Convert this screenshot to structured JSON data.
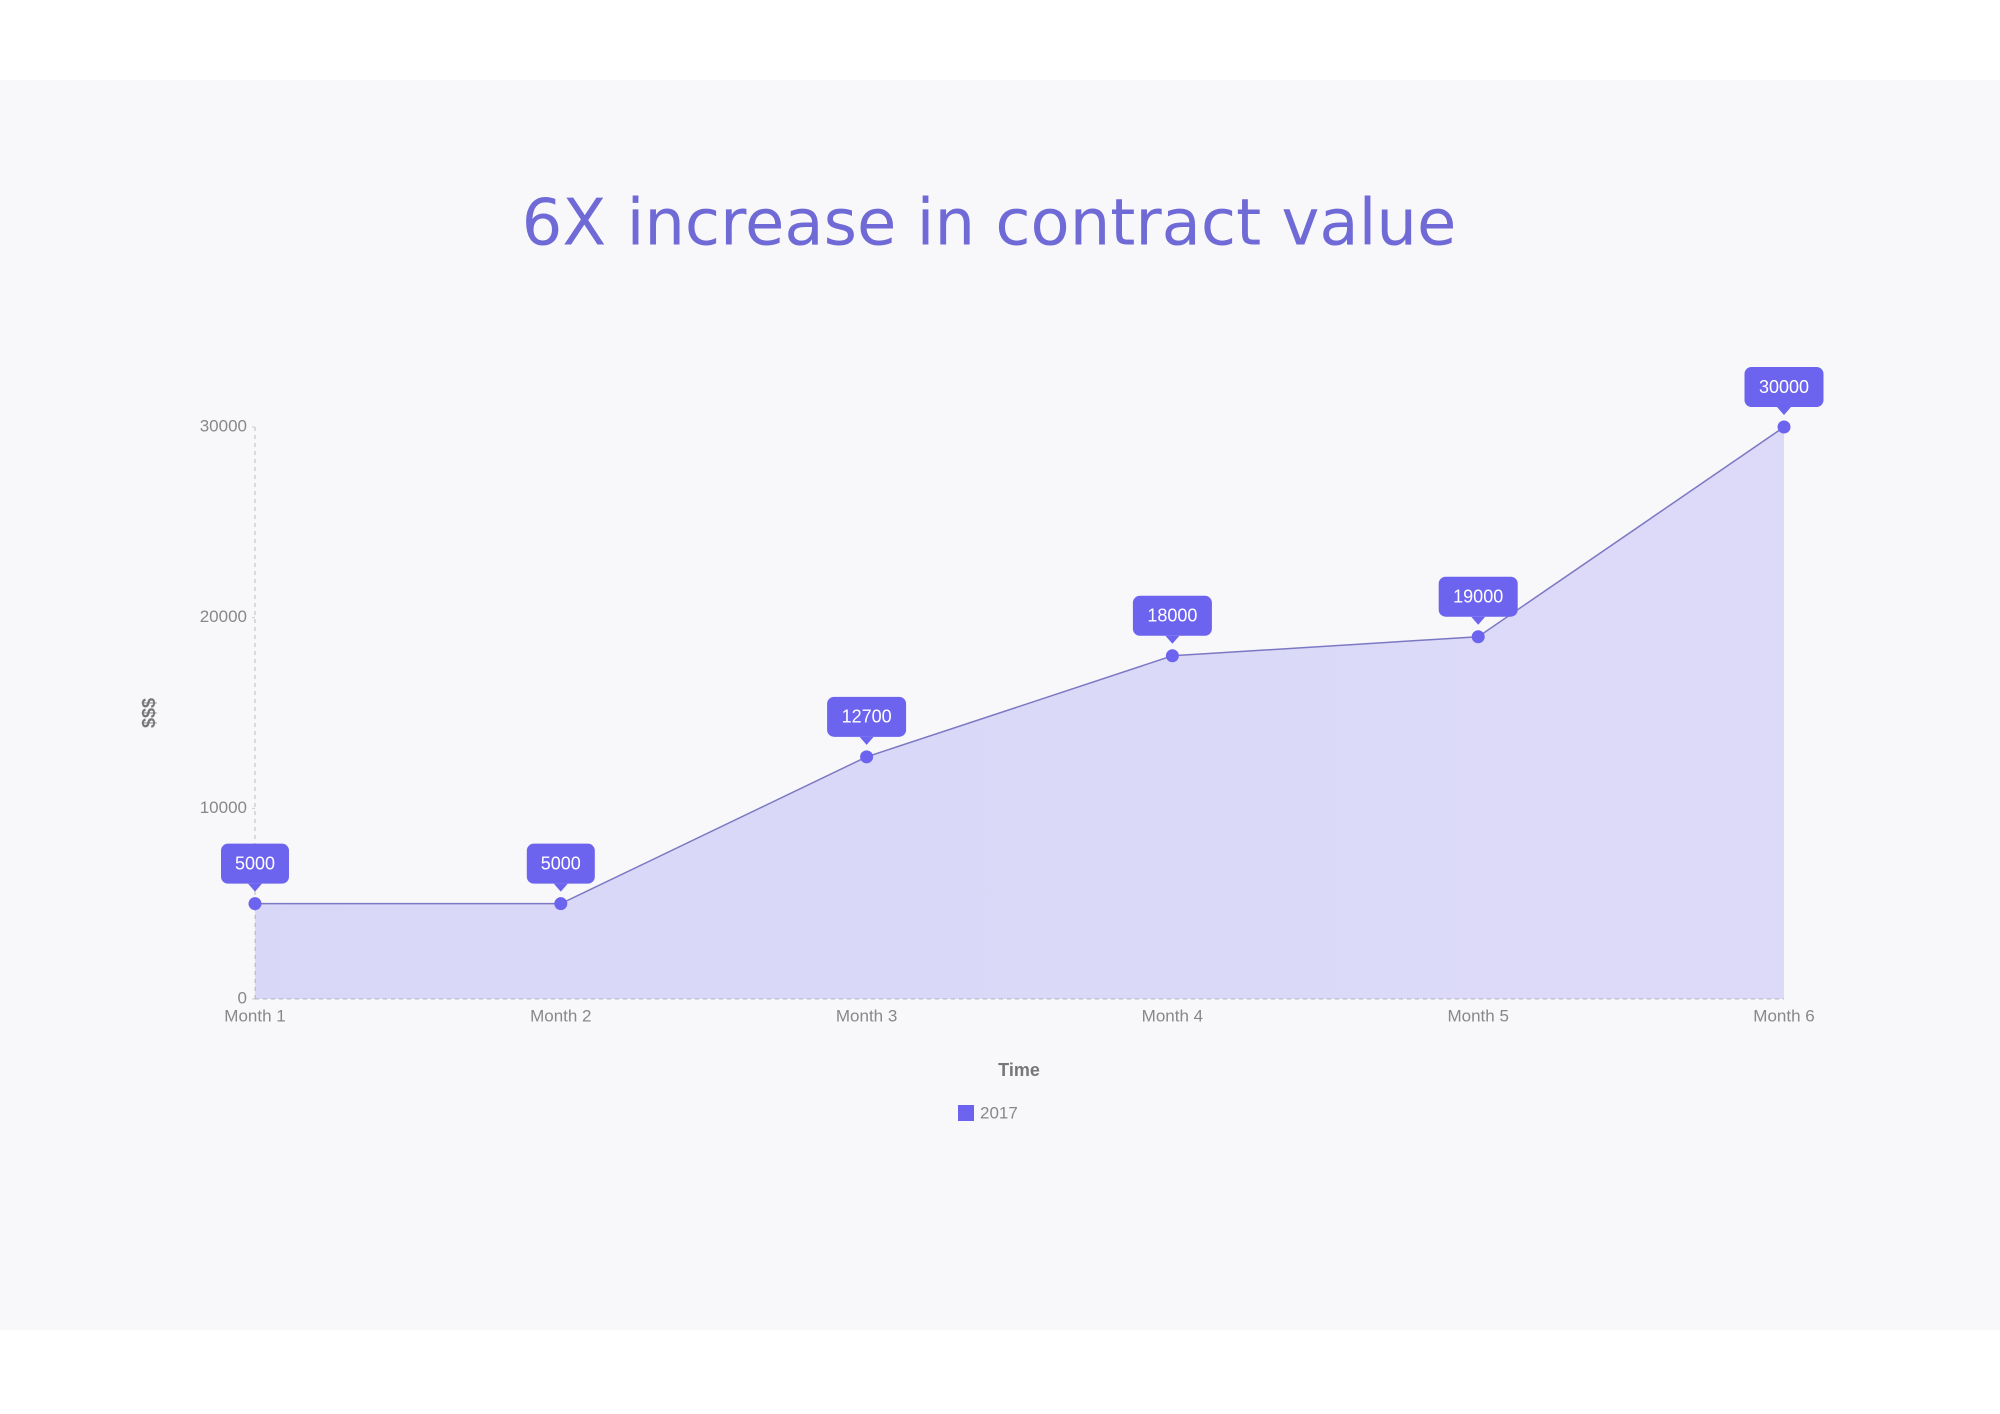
{
  "chart_data": {
    "type": "area",
    "title": "6X increase in contract value",
    "x_label": "Time",
    "y_label": "$$$",
    "categories": [
      "Month 1",
      "Month 2",
      "Month 3",
      "Month 4",
      "Month 5",
      "Month 6"
    ],
    "series": [
      {
        "name": "2017",
        "color": "#6c63ee",
        "values": [
          5000,
          5000,
          12700,
          18000,
          19000,
          30000
        ]
      }
    ],
    "ylim": [
      0,
      30000
    ],
    "yticks": [
      0,
      10000,
      20000,
      30000
    ],
    "grid": false,
    "legend": "bottom"
  }
}
